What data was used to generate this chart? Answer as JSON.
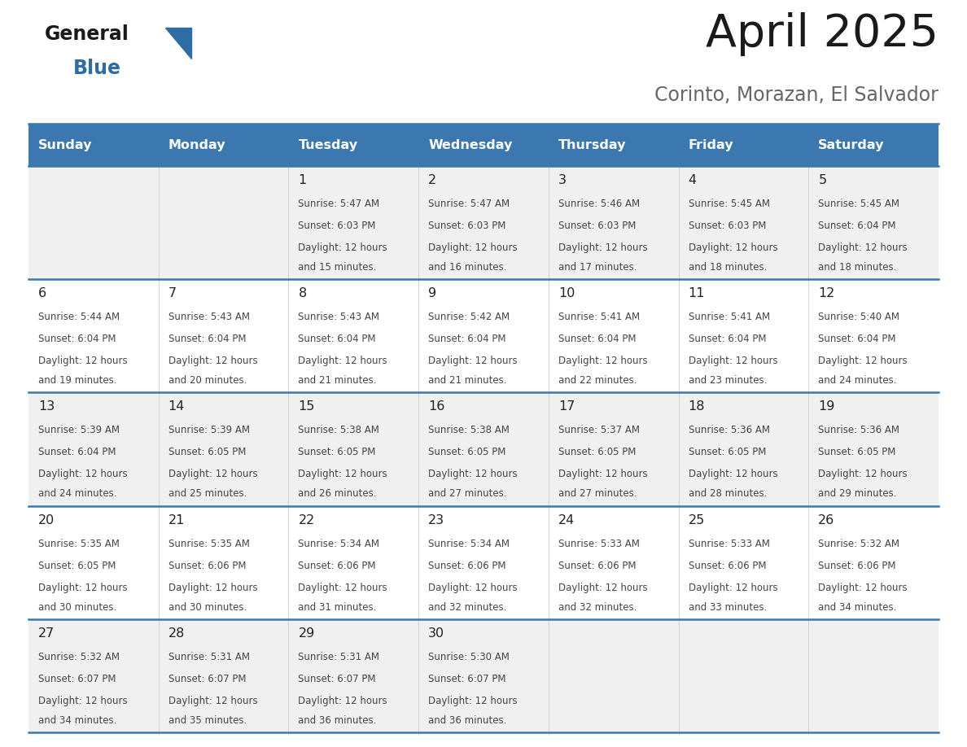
{
  "title": "April 2025",
  "subtitle": "Corinto, Morazan, El Salvador",
  "header_bg_color": "#3b78b0",
  "header_text_color": "#ffffff",
  "row_bg_even": "#f0f0f0",
  "row_bg_odd": "#ffffff",
  "day_number_color": "#222222",
  "cell_text_color": "#444444",
  "grid_line_color": "#3b78b0",
  "days_of_week": [
    "Sunday",
    "Monday",
    "Tuesday",
    "Wednesday",
    "Thursday",
    "Friday",
    "Saturday"
  ],
  "calendar": [
    [
      {
        "day": "",
        "sunrise": "",
        "sunset": "",
        "daylight_mins": 0
      },
      {
        "day": "",
        "sunrise": "",
        "sunset": "",
        "daylight_mins": 0
      },
      {
        "day": "1",
        "sunrise": "5:47 AM",
        "sunset": "6:03 PM",
        "daylight_mins": 15
      },
      {
        "day": "2",
        "sunrise": "5:47 AM",
        "sunset": "6:03 PM",
        "daylight_mins": 16
      },
      {
        "day": "3",
        "sunrise": "5:46 AM",
        "sunset": "6:03 PM",
        "daylight_mins": 17
      },
      {
        "day": "4",
        "sunrise": "5:45 AM",
        "sunset": "6:03 PM",
        "daylight_mins": 18
      },
      {
        "day": "5",
        "sunrise": "5:45 AM",
        "sunset": "6:04 PM",
        "daylight_mins": 18
      }
    ],
    [
      {
        "day": "6",
        "sunrise": "5:44 AM",
        "sunset": "6:04 PM",
        "daylight_mins": 19
      },
      {
        "day": "7",
        "sunrise": "5:43 AM",
        "sunset": "6:04 PM",
        "daylight_mins": 20
      },
      {
        "day": "8",
        "sunrise": "5:43 AM",
        "sunset": "6:04 PM",
        "daylight_mins": 21
      },
      {
        "day": "9",
        "sunrise": "5:42 AM",
        "sunset": "6:04 PM",
        "daylight_mins": 21
      },
      {
        "day": "10",
        "sunrise": "5:41 AM",
        "sunset": "6:04 PM",
        "daylight_mins": 22
      },
      {
        "day": "11",
        "sunrise": "5:41 AM",
        "sunset": "6:04 PM",
        "daylight_mins": 23
      },
      {
        "day": "12",
        "sunrise": "5:40 AM",
        "sunset": "6:04 PM",
        "daylight_mins": 24
      }
    ],
    [
      {
        "day": "13",
        "sunrise": "5:39 AM",
        "sunset": "6:04 PM",
        "daylight_mins": 24
      },
      {
        "day": "14",
        "sunrise": "5:39 AM",
        "sunset": "6:05 PM",
        "daylight_mins": 25
      },
      {
        "day": "15",
        "sunrise": "5:38 AM",
        "sunset": "6:05 PM",
        "daylight_mins": 26
      },
      {
        "day": "16",
        "sunrise": "5:38 AM",
        "sunset": "6:05 PM",
        "daylight_mins": 27
      },
      {
        "day": "17",
        "sunrise": "5:37 AM",
        "sunset": "6:05 PM",
        "daylight_mins": 27
      },
      {
        "day": "18",
        "sunrise": "5:36 AM",
        "sunset": "6:05 PM",
        "daylight_mins": 28
      },
      {
        "day": "19",
        "sunrise": "5:36 AM",
        "sunset": "6:05 PM",
        "daylight_mins": 29
      }
    ],
    [
      {
        "day": "20",
        "sunrise": "5:35 AM",
        "sunset": "6:05 PM",
        "daylight_mins": 30
      },
      {
        "day": "21",
        "sunrise": "5:35 AM",
        "sunset": "6:06 PM",
        "daylight_mins": 30
      },
      {
        "day": "22",
        "sunrise": "5:34 AM",
        "sunset": "6:06 PM",
        "daylight_mins": 31
      },
      {
        "day": "23",
        "sunrise": "5:34 AM",
        "sunset": "6:06 PM",
        "daylight_mins": 32
      },
      {
        "day": "24",
        "sunrise": "5:33 AM",
        "sunset": "6:06 PM",
        "daylight_mins": 32
      },
      {
        "day": "25",
        "sunrise": "5:33 AM",
        "sunset": "6:06 PM",
        "daylight_mins": 33
      },
      {
        "day": "26",
        "sunrise": "5:32 AM",
        "sunset": "6:06 PM",
        "daylight_mins": 34
      }
    ],
    [
      {
        "day": "27",
        "sunrise": "5:32 AM",
        "sunset": "6:07 PM",
        "daylight_mins": 34
      },
      {
        "day": "28",
        "sunrise": "5:31 AM",
        "sunset": "6:07 PM",
        "daylight_mins": 35
      },
      {
        "day": "29",
        "sunrise": "5:31 AM",
        "sunset": "6:07 PM",
        "daylight_mins": 36
      },
      {
        "day": "30",
        "sunrise": "5:30 AM",
        "sunset": "6:07 PM",
        "daylight_mins": 36
      },
      {
        "day": "",
        "sunrise": "",
        "sunset": "",
        "daylight_mins": 0
      },
      {
        "day": "",
        "sunrise": "",
        "sunset": "",
        "daylight_mins": 0
      },
      {
        "day": "",
        "sunrise": "",
        "sunset": "",
        "daylight_mins": 0
      }
    ]
  ],
  "logo_general_color": "#1a1a1a",
  "logo_blue_color": "#2e6da4",
  "title_color": "#1a1a1a",
  "subtitle_color": "#666666",
  "fig_width": 11.88,
  "fig_height": 9.18,
  "dpi": 100
}
